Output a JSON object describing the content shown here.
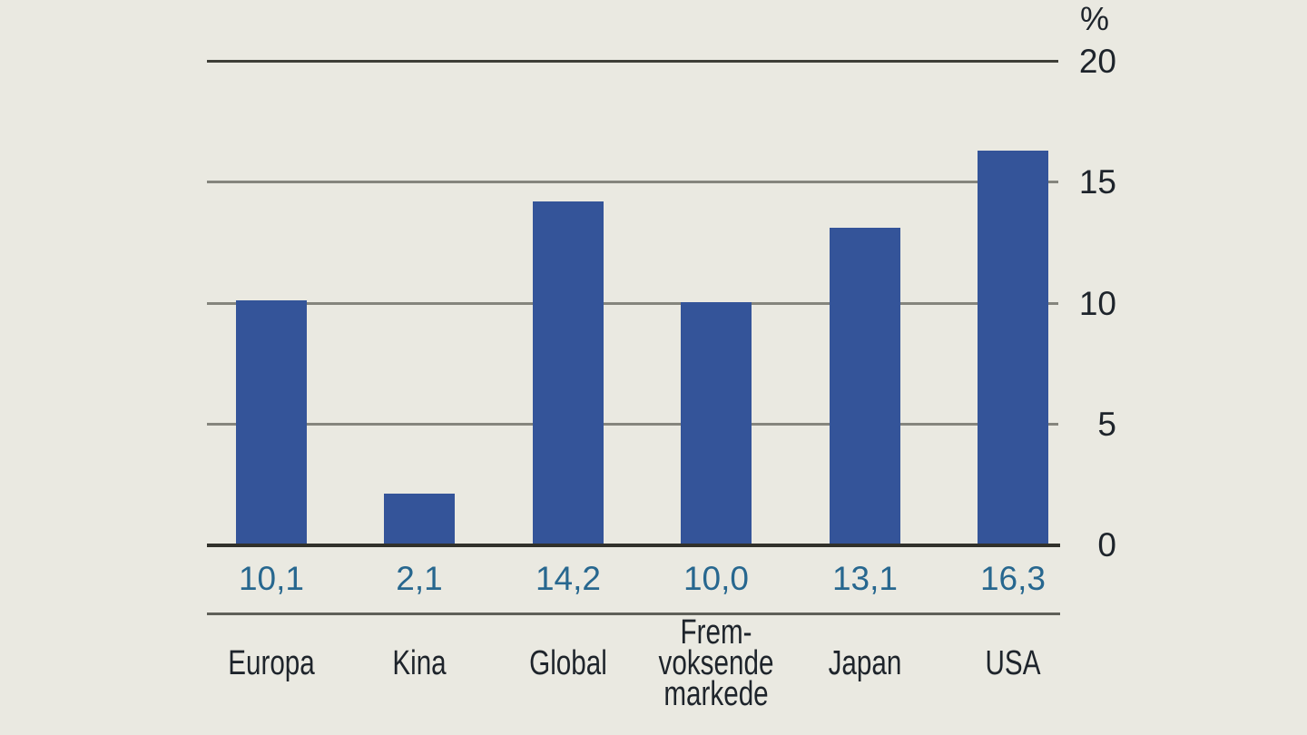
{
  "chart_data": {
    "type": "bar",
    "unit": "%",
    "categories": [
      "Europa",
      "Kina",
      "Global",
      "Frem-voksende markede",
      "Japan",
      "USA"
    ],
    "category_display_lines": [
      [
        "Europa"
      ],
      [
        "Kina"
      ],
      [
        "Global"
      ],
      [
        "Frem-",
        "voksende",
        "markede"
      ],
      [
        "Japan"
      ],
      [
        "USA"
      ]
    ],
    "values": [
      10.1,
      2.1,
      14.2,
      10.0,
      13.1,
      16.3
    ],
    "value_labels": [
      "10,1",
      "2,1",
      "14,2",
      "10,0",
      "13,1",
      "16,3"
    ],
    "ylim": [
      0,
      20
    ],
    "yticks": [
      {
        "value": 0,
        "label": "0"
      },
      {
        "value": 5,
        "label": "5"
      },
      {
        "value": 10,
        "label": "10"
      },
      {
        "value": 15,
        "label": "15"
      },
      {
        "value": 20,
        "label": "20"
      }
    ],
    "grid": true,
    "legend_position": "none",
    "colors": {
      "background": "#EAE9E1",
      "bar": "#345499",
      "gridline": "#85857D",
      "top_gridline": "#3E3E37",
      "baseline": "#31312B",
      "separator": "#5F5F58",
      "value_label": "#27678F",
      "axis_text": "#1E242B"
    }
  }
}
